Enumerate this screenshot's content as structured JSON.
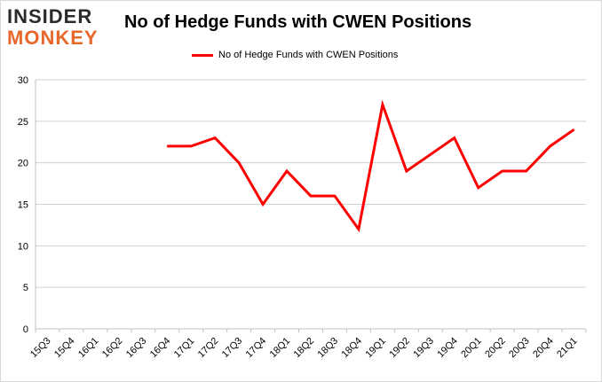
{
  "logo": {
    "top": "INSIDER",
    "bottom": "MONKEY"
  },
  "chart_data": {
    "type": "line",
    "title": "No of Hedge Funds with CWEN Positions",
    "xlabel": "",
    "ylabel": "",
    "categories": [
      "15Q3",
      "15Q4",
      "16Q1",
      "16Q2",
      "16Q3",
      "16Q4",
      "17Q1",
      "17Q2",
      "17Q3",
      "17Q4",
      "18Q1",
      "18Q2",
      "18Q3",
      "18Q4",
      "19Q1",
      "19Q2",
      "19Q3",
      "19Q4",
      "20Q1",
      "20Q2",
      "20Q3",
      "20Q4",
      "21Q1"
    ],
    "series": [
      {
        "name": "No of Hedge Funds with CWEN Positions",
        "color": "#ff0000",
        "values": [
          null,
          null,
          null,
          null,
          null,
          22,
          22,
          23,
          20,
          15,
          19,
          16,
          16,
          12,
          27,
          19,
          21,
          23,
          17,
          19,
          19,
          22,
          24
        ]
      }
    ],
    "ylim": [
      0,
      30
    ],
    "yticks": [
      0,
      5,
      10,
      15,
      20,
      25,
      30
    ],
    "grid": true,
    "legend_position": "top-center"
  }
}
